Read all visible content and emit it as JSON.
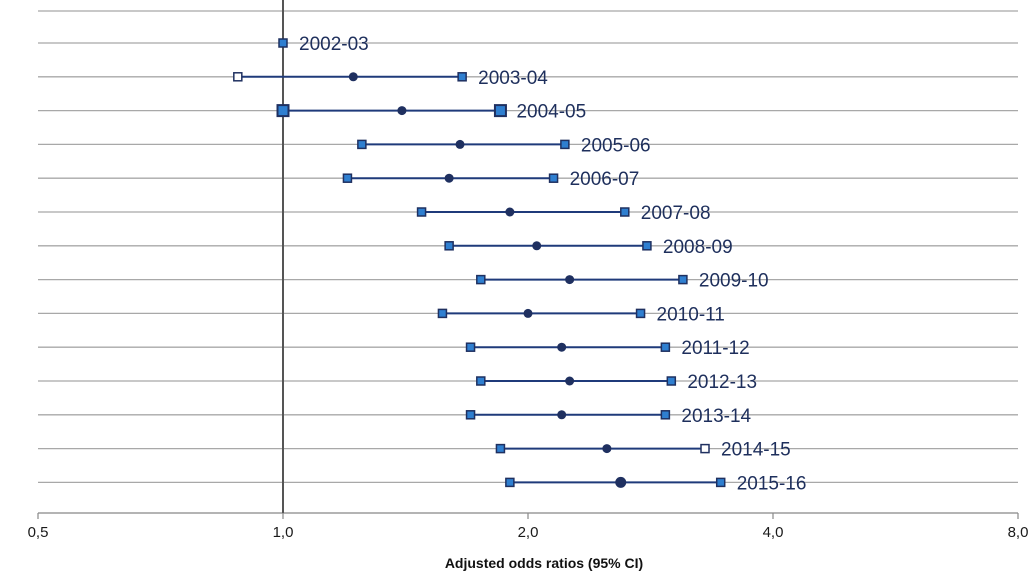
{
  "chart_data": {
    "type": "scatter",
    "title": "",
    "xlabel": "Adjusted odds ratios (95% CI)",
    "ylabel": "",
    "x_scale": "log2",
    "xlim": [
      0.5,
      8.0
    ],
    "x_ticks": [
      {
        "value": 0.5,
        "label": "0,5"
      },
      {
        "value": 1.0,
        "label": "1,0"
      },
      {
        "value": 2.0,
        "label": "2,0"
      },
      {
        "value": 4.0,
        "label": "4,0"
      },
      {
        "value": 8.0,
        "label": "8,0"
      }
    ],
    "reference_line": 1.0,
    "grid": "horizontal",
    "rows": [
      {
        "label": "2002-03",
        "or": 1.0,
        "lower": 1.0,
        "upper": 1.0
      },
      {
        "label": "2003-04",
        "or": 1.22,
        "lower": 0.88,
        "upper": 1.66
      },
      {
        "label": "2004-05",
        "or": 1.4,
        "lower": 1.0,
        "upper": 1.85
      },
      {
        "label": "2005-06",
        "or": 1.65,
        "lower": 1.25,
        "upper": 2.22
      },
      {
        "label": "2006-07",
        "or": 1.6,
        "lower": 1.2,
        "upper": 2.15
      },
      {
        "label": "2007-08",
        "or": 1.9,
        "lower": 1.48,
        "upper": 2.63
      },
      {
        "label": "2008-09",
        "or": 2.05,
        "lower": 1.6,
        "upper": 2.8
      },
      {
        "label": "2009-10",
        "or": 2.25,
        "lower": 1.75,
        "upper": 3.1
      },
      {
        "label": "2010-11",
        "or": 2.0,
        "lower": 1.57,
        "upper": 2.75
      },
      {
        "label": "2011-12",
        "or": 2.2,
        "lower": 1.7,
        "upper": 2.95
      },
      {
        "label": "2012-13",
        "or": 2.25,
        "lower": 1.75,
        "upper": 3.0
      },
      {
        "label": "2013-14",
        "or": 2.2,
        "lower": 1.7,
        "upper": 2.95
      },
      {
        "label": "2014-15",
        "or": 2.5,
        "lower": 1.85,
        "upper": 3.3
      },
      {
        "label": "2015-16",
        "or": 2.6,
        "lower": 1.9,
        "upper": 3.45
      }
    ],
    "colors": {
      "ci_line": "#1f3a7a",
      "point": "#1f3060",
      "square_fill": "#2f7fd0",
      "square_edge": "#1f3060",
      "grid": "#a8a8a8",
      "reference": "#555555",
      "label": "#1e2f5c"
    }
  }
}
